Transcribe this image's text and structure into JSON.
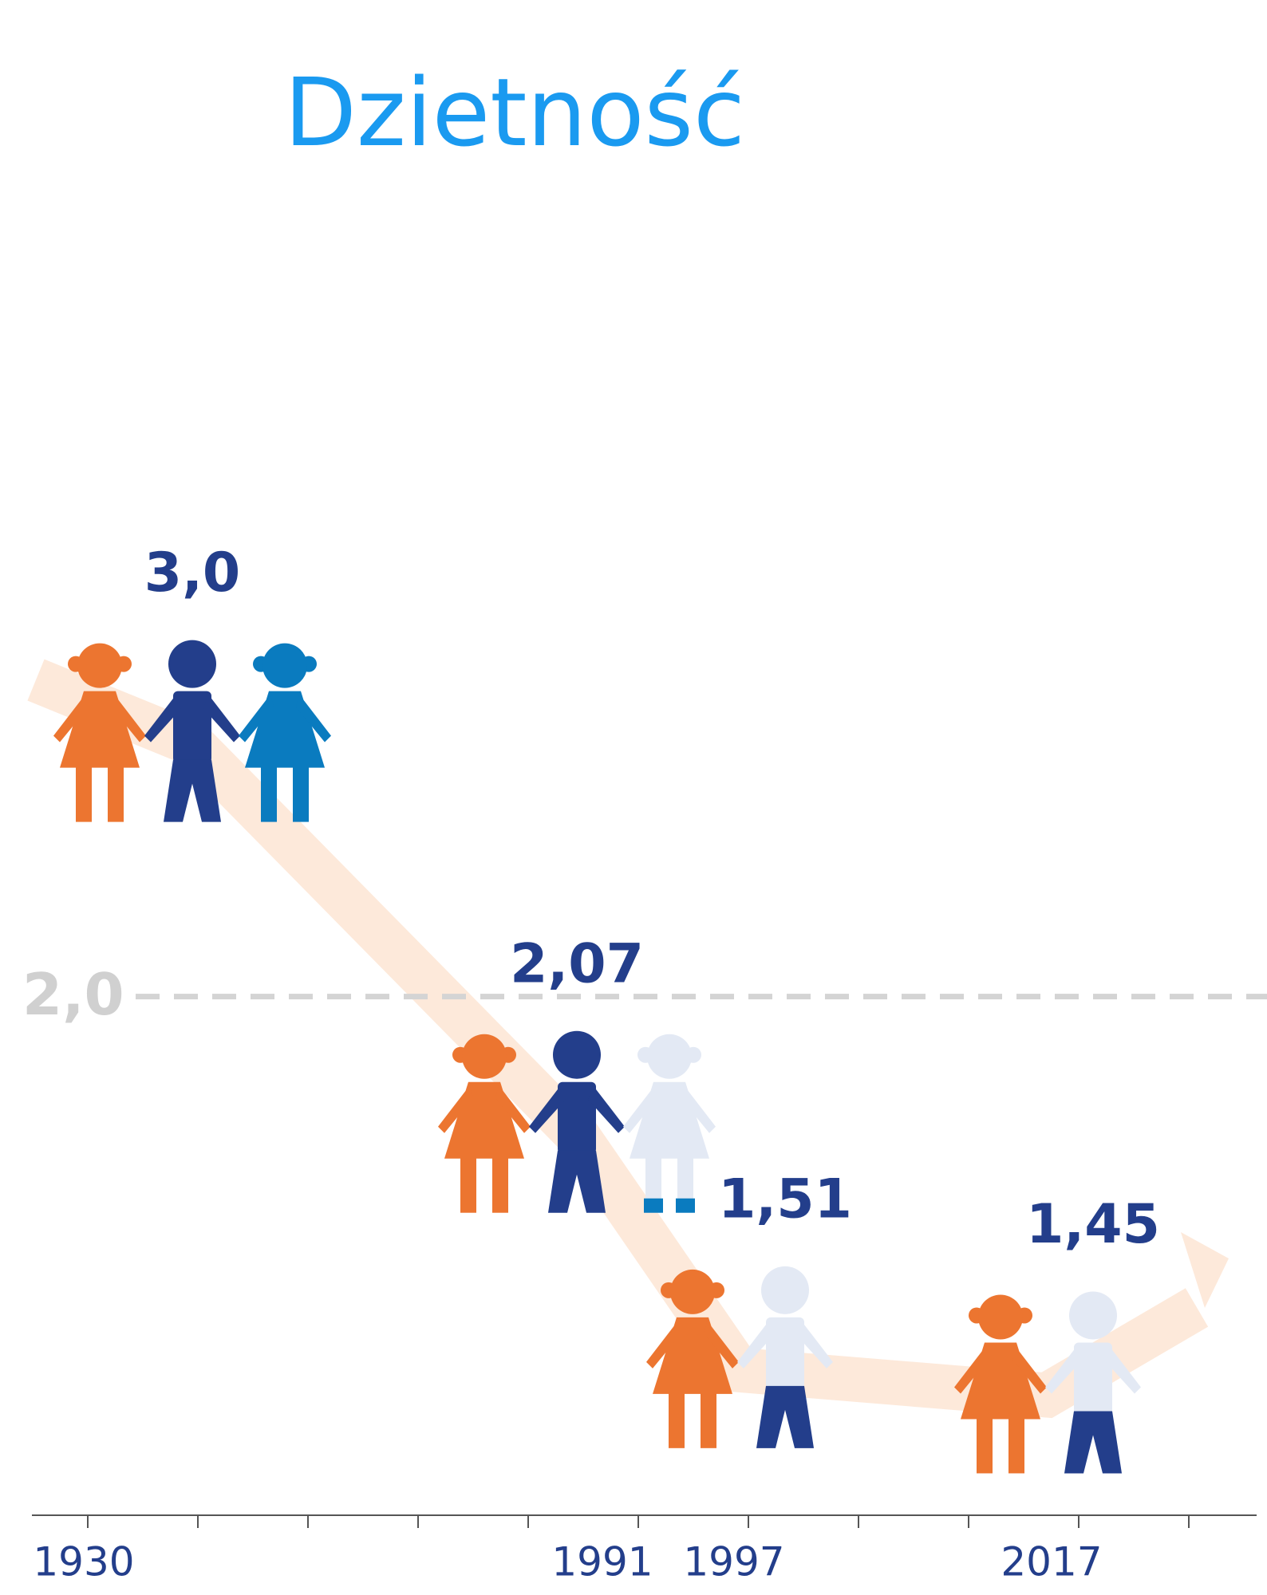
{
  "chart_data": {
    "type": "pictogram",
    "title": "Dzietność",
    "categories": [
      "1930",
      "1991",
      "1997",
      "2017"
    ],
    "values": [
      3.0,
      2.07,
      1.51,
      1.45
    ],
    "value_labels": [
      "3,0",
      "2,07",
      "1,51",
      "1,45"
    ],
    "ylim": [
      0.8,
      3.8
    ],
    "reference": {
      "value": 2.0,
      "label": "2,0"
    },
    "colors": [
      "#ec7530",
      "#233e8b",
      "#0a7bbf"
    ],
    "faded_color": "#e3e9f4",
    "trend_color": "#fde9da"
  }
}
